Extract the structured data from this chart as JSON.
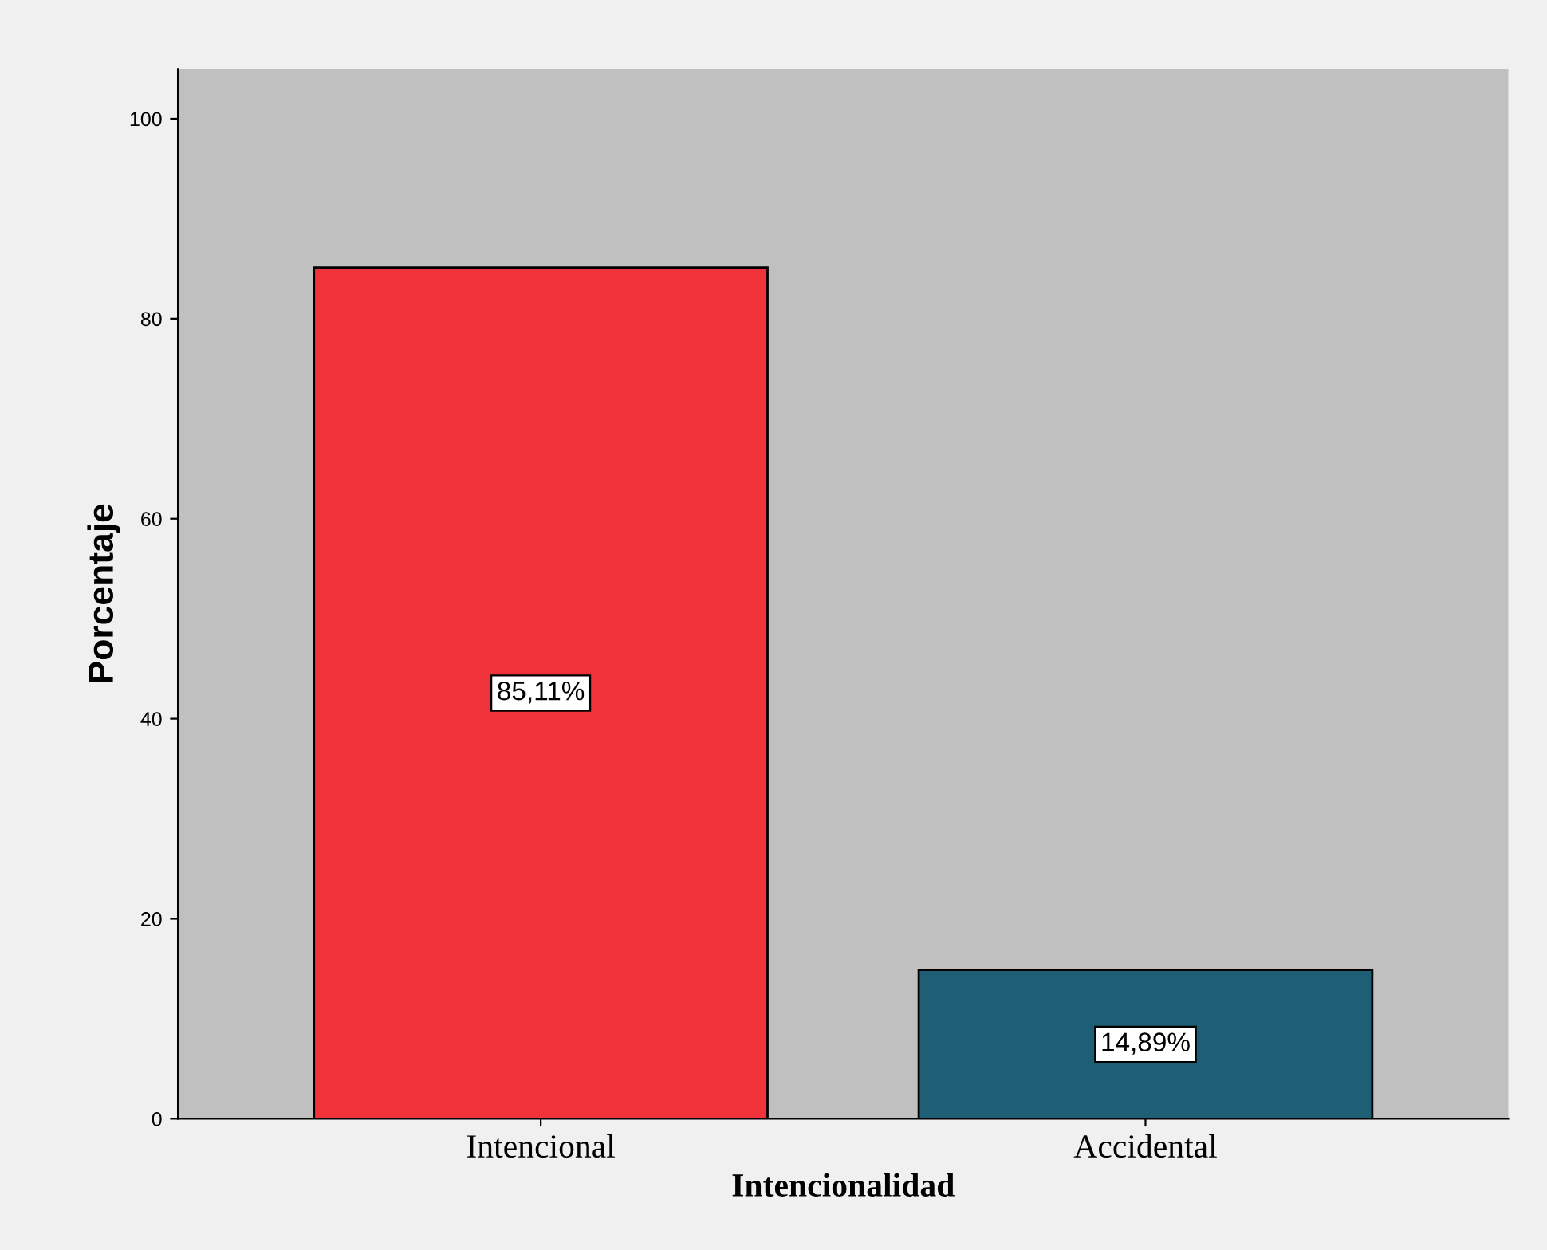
{
  "chart_data": {
    "type": "bar",
    "xlabel": "Intencionalidad",
    "ylabel": "Porcentaje",
    "categories": [
      "Intencional",
      "Accidental"
    ],
    "values": [
      85.11,
      14.89
    ],
    "colors": [
      "#f0323a",
      "#1f5f75"
    ],
    "value_labels": [
      "85,11%",
      "14,89%"
    ],
    "ylim": [
      0,
      105
    ],
    "yticks": [
      0,
      20,
      40,
      60,
      80,
      100
    ],
    "grid": false
  }
}
